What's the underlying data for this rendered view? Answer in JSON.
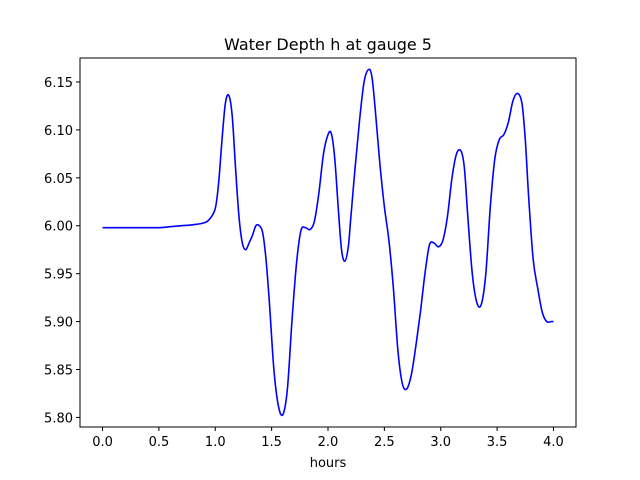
{
  "chart_data": {
    "type": "line",
    "title": "Water Depth h at gauge 5",
    "xlabel": "hours",
    "ylabel": "",
    "xlim": [
      -0.2,
      4.2
    ],
    "ylim": [
      5.79,
      6.175
    ],
    "xticks": [
      0.0,
      0.5,
      1.0,
      1.5,
      2.0,
      2.5,
      3.0,
      3.5,
      4.0
    ],
    "xtick_labels": [
      "0.0",
      "0.5",
      "1.0",
      "1.5",
      "2.0",
      "2.5",
      "3.0",
      "3.5",
      "4.0"
    ],
    "yticks": [
      5.8,
      5.85,
      5.9,
      5.95,
      6.0,
      6.05,
      6.1,
      6.15
    ],
    "ytick_labels": [
      "5.80",
      "5.85",
      "5.90",
      "5.95",
      "6.00",
      "6.05",
      "6.10",
      "6.15"
    ],
    "grid": false,
    "series": [
      {
        "color": "#0000ff",
        "x": [
          0.0,
          0.3,
          0.5,
          0.6,
          0.7,
          0.8,
          0.9,
          0.95,
          1.0,
          1.03,
          1.06,
          1.09,
          1.12,
          1.15,
          1.18,
          1.21,
          1.24,
          1.27,
          1.3,
          1.33,
          1.36,
          1.39,
          1.42,
          1.45,
          1.48,
          1.52,
          1.56,
          1.6,
          1.64,
          1.68,
          1.72,
          1.76,
          1.8,
          1.84,
          1.88,
          1.92,
          1.96,
          2.0,
          2.03,
          2.06,
          2.09,
          2.12,
          2.15,
          2.18,
          2.2,
          2.24,
          2.28,
          2.32,
          2.36,
          2.39,
          2.42,
          2.46,
          2.5,
          2.54,
          2.58,
          2.62,
          2.66,
          2.7,
          2.74,
          2.78,
          2.82,
          2.86,
          2.9,
          2.94,
          2.98,
          3.02,
          3.06,
          3.1,
          3.14,
          3.18,
          3.21,
          3.24,
          3.28,
          3.32,
          3.36,
          3.4,
          3.44,
          3.48,
          3.52,
          3.56,
          3.6,
          3.64,
          3.68,
          3.72,
          3.75,
          3.78,
          3.82,
          3.86,
          3.9,
          3.94,
          3.98,
          4.0
        ],
        "y": [
          5.998,
          5.998,
          5.998,
          5.999,
          6.0,
          6.001,
          6.003,
          6.007,
          6.018,
          6.045,
          6.09,
          6.128,
          6.136,
          6.115,
          6.06,
          6.01,
          5.982,
          5.975,
          5.982,
          5.99,
          6.0,
          6.0,
          5.993,
          5.965,
          5.92,
          5.85,
          5.812,
          5.803,
          5.83,
          5.9,
          5.96,
          5.995,
          5.998,
          5.996,
          6.005,
          6.035,
          6.075,
          6.095,
          6.096,
          6.07,
          6.02,
          5.975,
          5.963,
          5.978,
          6.005,
          6.06,
          6.11,
          6.15,
          6.163,
          6.155,
          6.12,
          6.065,
          6.02,
          5.985,
          5.935,
          5.87,
          5.835,
          5.83,
          5.845,
          5.875,
          5.91,
          5.95,
          5.98,
          5.982,
          5.978,
          5.985,
          6.01,
          6.05,
          6.075,
          6.078,
          6.06,
          6.01,
          5.95,
          5.92,
          5.918,
          5.95,
          6.02,
          6.07,
          6.09,
          6.095,
          6.108,
          6.13,
          6.138,
          6.128,
          6.09,
          6.03,
          5.965,
          5.935,
          5.91,
          5.9,
          5.9,
          5.9
        ]
      }
    ]
  }
}
